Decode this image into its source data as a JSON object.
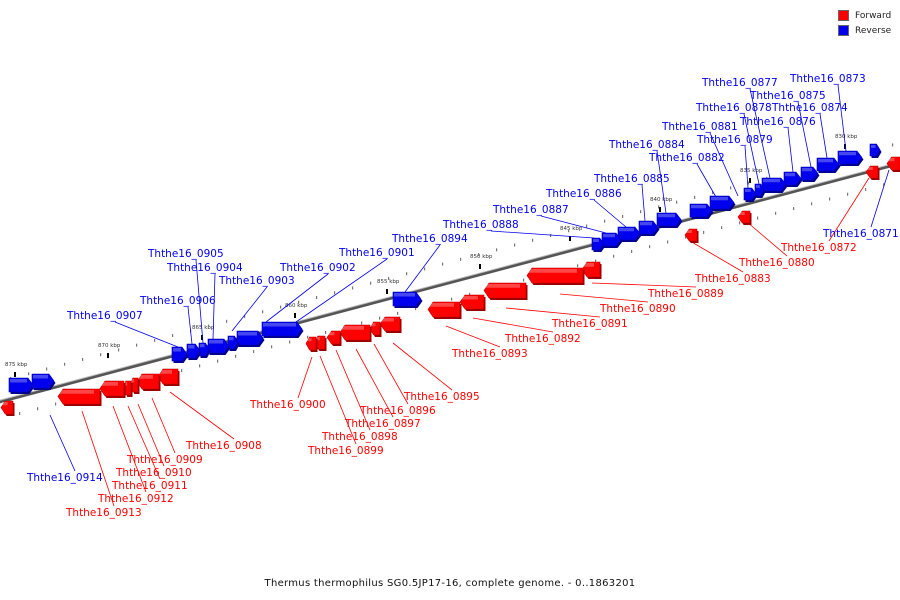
{
  "legend": {
    "forward_label": "Forward",
    "reverse_label": "Reverse",
    "forward_color": "#ff0000",
    "reverse_color": "#0000ee"
  },
  "caption": "Thermus thermophilus SG0.5JP17-16, complete genome. - 0..1863201",
  "ticks": [
    "830 kbp",
    "835 kbp",
    "840 kbp",
    "845 kbp",
    "850 kbp",
    "855 kbp",
    "860 kbp",
    "865 kbp",
    "870 kbp",
    "875 kbp"
  ],
  "genes": [
    {
      "id": "Ththe16_0871",
      "strand": "reverse"
    },
    {
      "id": "Ththe16_0872",
      "strand": "forward"
    },
    {
      "id": "Ththe16_0873",
      "strand": "reverse"
    },
    {
      "id": "Ththe16_0874",
      "strand": "reverse"
    },
    {
      "id": "Ththe16_0875",
      "strand": "reverse"
    },
    {
      "id": "Ththe16_0876",
      "strand": "reverse"
    },
    {
      "id": "Ththe16_0877",
      "strand": "reverse"
    },
    {
      "id": "Ththe16_0878",
      "strand": "reverse"
    },
    {
      "id": "Ththe16_0879",
      "strand": "reverse"
    },
    {
      "id": "Ththe16_0880",
      "strand": "forward"
    },
    {
      "id": "Ththe16_0881",
      "strand": "reverse"
    },
    {
      "id": "Ththe16_0882",
      "strand": "reverse"
    },
    {
      "id": "Ththe16_0883",
      "strand": "forward"
    },
    {
      "id": "Ththe16_0884",
      "strand": "reverse"
    },
    {
      "id": "Ththe16_0885",
      "strand": "reverse"
    },
    {
      "id": "Ththe16_0886",
      "strand": "reverse"
    },
    {
      "id": "Ththe16_0887",
      "strand": "reverse"
    },
    {
      "id": "Ththe16_0888",
      "strand": "reverse"
    },
    {
      "id": "Ththe16_0889",
      "strand": "forward"
    },
    {
      "id": "Ththe16_0890",
      "strand": "forward"
    },
    {
      "id": "Ththe16_0891",
      "strand": "forward"
    },
    {
      "id": "Ththe16_0892",
      "strand": "forward"
    },
    {
      "id": "Ththe16_0893",
      "strand": "forward"
    },
    {
      "id": "Ththe16_0894",
      "strand": "reverse"
    },
    {
      "id": "Ththe16_0895",
      "strand": "forward"
    },
    {
      "id": "Ththe16_0896",
      "strand": "forward"
    },
    {
      "id": "Ththe16_0897",
      "strand": "forward"
    },
    {
      "id": "Ththe16_0898",
      "strand": "forward"
    },
    {
      "id": "Ththe16_0899",
      "strand": "forward"
    },
    {
      "id": "Ththe16_0900",
      "strand": "forward"
    },
    {
      "id": "Ththe16_0901",
      "strand": "reverse"
    },
    {
      "id": "Ththe16_0902",
      "strand": "reverse"
    },
    {
      "id": "Ththe16_0903",
      "strand": "reverse"
    },
    {
      "id": "Ththe16_0904",
      "strand": "reverse"
    },
    {
      "id": "Ththe16_0905",
      "strand": "reverse"
    },
    {
      "id": "Ththe16_0906",
      "strand": "reverse"
    },
    {
      "id": "Ththe16_0907",
      "strand": "reverse"
    },
    {
      "id": "Ththe16_0908",
      "strand": "forward"
    },
    {
      "id": "Ththe16_0909",
      "strand": "forward"
    },
    {
      "id": "Ththe16_0910",
      "strand": "forward"
    },
    {
      "id": "Ththe16_0911",
      "strand": "forward"
    },
    {
      "id": "Ththe16_0912",
      "strand": "forward"
    },
    {
      "id": "Ththe16_0913",
      "strand": "forward"
    },
    {
      "id": "Ththe16_0914",
      "strand": "reverse"
    }
  ]
}
